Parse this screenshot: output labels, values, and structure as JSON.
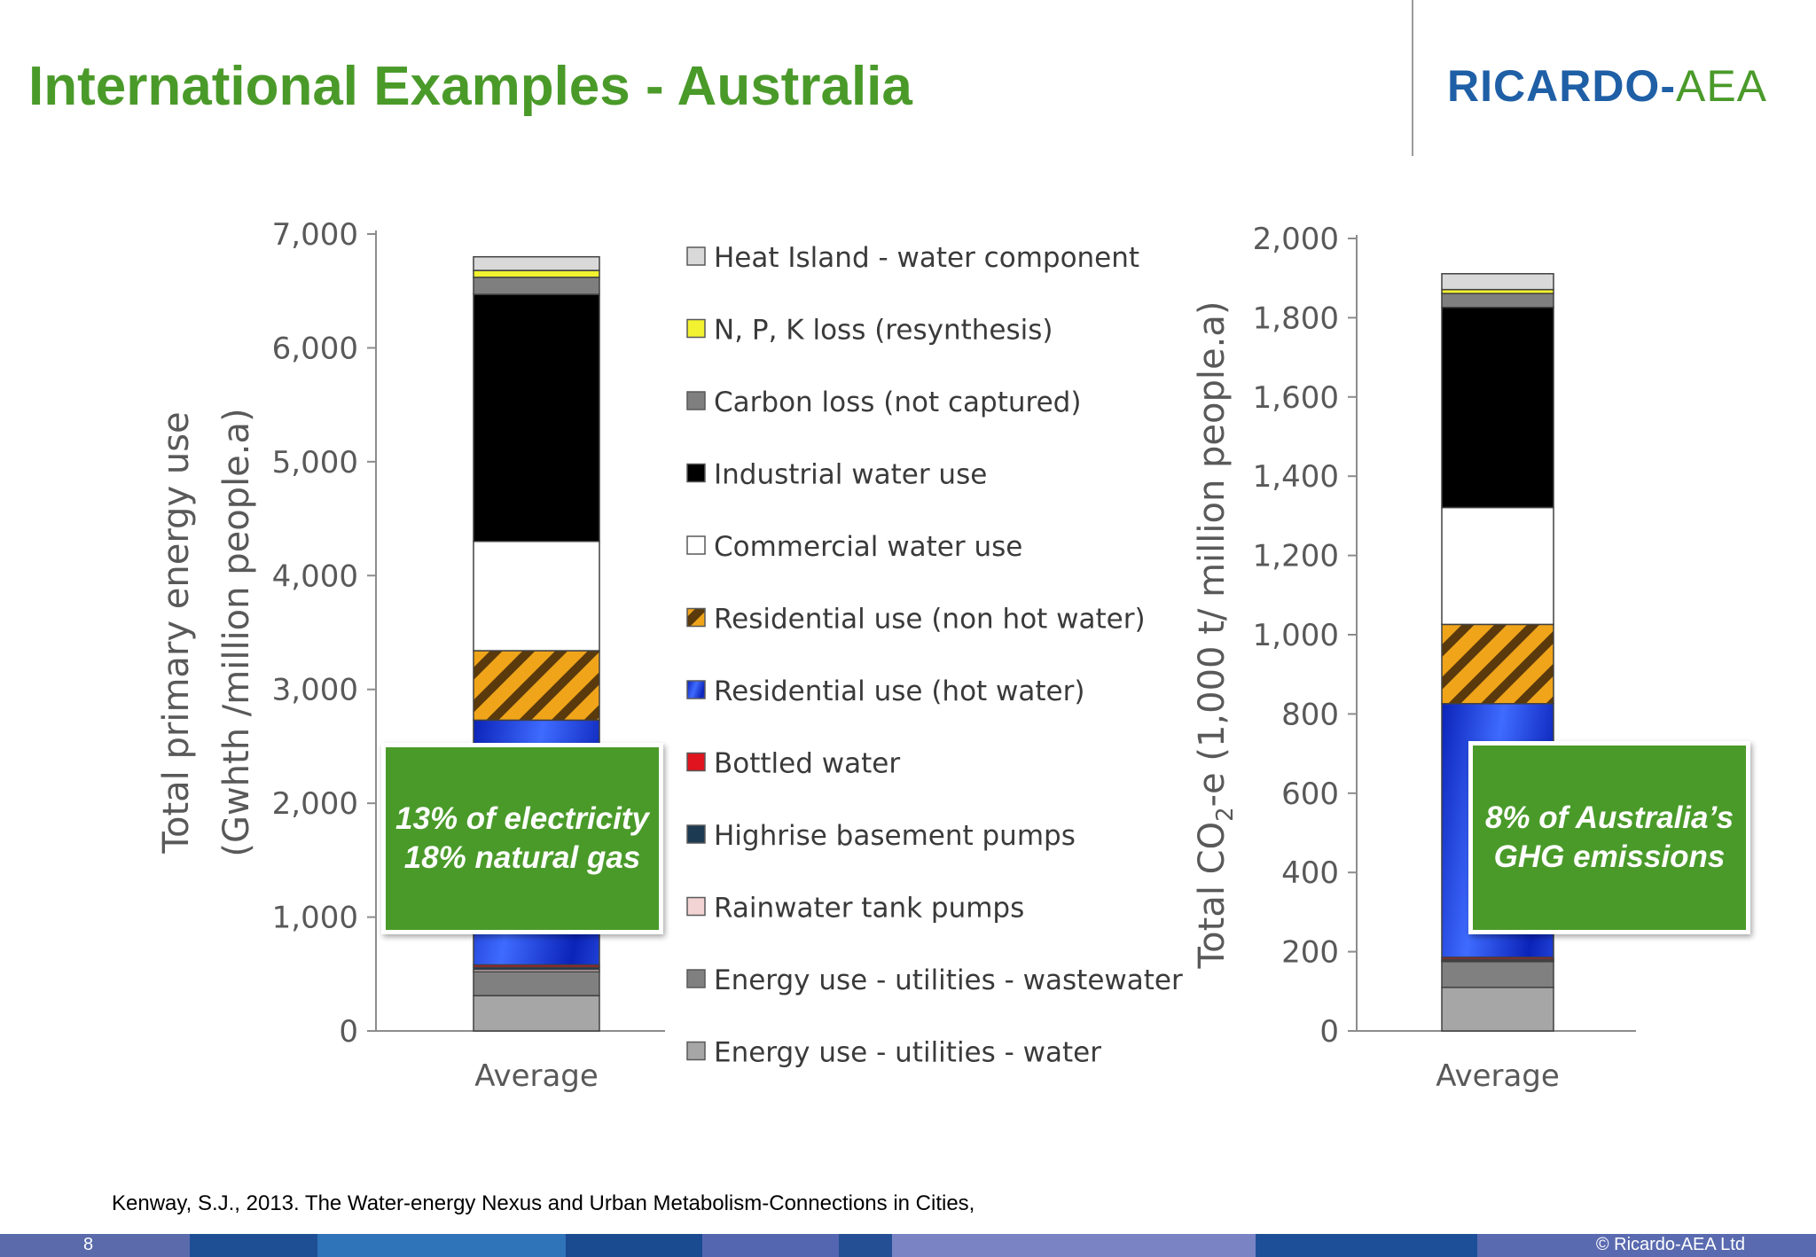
{
  "slide": {
    "title": "International Examples - Australia",
    "logo": {
      "part1": "RICARDO",
      "separator": "-",
      "part2": "AEA"
    },
    "citation": "Kenway, S.J., 2013. The Water-energy Nexus and Urban Metabolism-Connections in Cities,",
    "page_number": "8",
    "copyright": "© Ricardo-AEA Ltd",
    "callouts": {
      "left": {
        "line1": "13% of electricity",
        "line2": "18% natural gas"
      },
      "right": {
        "line1": "8% of Australia’s",
        "line2": "GHG emissions"
      }
    },
    "colors": {
      "title": "#4a9a2a",
      "logo_blue": "#1f5fa6",
      "callout_bg": "#4a9a2a"
    }
  },
  "legend_items": [
    {
      "label": "Heat Island - water component",
      "color": "#d9d9d9"
    },
    {
      "label": "N, P, K loss (resynthesis)",
      "color": "#f2f230"
    },
    {
      "label": "Carbon loss (not captured)",
      "color": "#7f7f7f"
    },
    {
      "label": "Industrial water use",
      "color": "#000000"
    },
    {
      "label": "Commercial water use",
      "color": "#ffffff"
    },
    {
      "label": "Residential use (non hot water)",
      "color": "#e39a16",
      "pattern": "orange-stripes"
    },
    {
      "label": "Residential use (hot water)",
      "color": "#1a3fd9",
      "pattern": "blue-gradient"
    },
    {
      "label": "Bottled water",
      "color": "#e0141e"
    },
    {
      "label": "Highrise basement pumps",
      "color": "#1c3a52"
    },
    {
      "label": "Rainwater tank pumps",
      "color": "#f2d4d4"
    },
    {
      "label": "Energy use - utilities - wastewater",
      "color": "#808080"
    },
    {
      "label": "Energy use - utilities - water",
      "color": "#a6a6a6"
    }
  ],
  "chart_data": [
    {
      "type": "bar",
      "stacked": true,
      "categories": [
        "Average"
      ],
      "ylabel": [
        "Total primary energy use",
        "(Gwhth /million people.a)"
      ],
      "ylim": [
        0,
        7000
      ],
      "yticks": [
        0,
        1000,
        2000,
        3000,
        4000,
        5000,
        6000,
        7000
      ],
      "ytick_labels": [
        "0",
        "1,000",
        "2,000",
        "3,000",
        "4,000",
        "5,000",
        "6,000",
        "7,000"
      ],
      "series": [
        {
          "name": "Energy use - utilities - water",
          "values": [
            310
          ]
        },
        {
          "name": "Energy use - utilities - wastewater",
          "values": [
            210
          ]
        },
        {
          "name": "Rainwater tank pumps",
          "values": [
            20
          ]
        },
        {
          "name": "Highrise basement pumps",
          "values": [
            20
          ]
        },
        {
          "name": "Bottled water",
          "values": [
            20
          ]
        },
        {
          "name": "Residential use (hot water)",
          "values": [
            2150
          ]
        },
        {
          "name": "Residential use (non hot water)",
          "values": [
            610
          ]
        },
        {
          "name": "Commercial water use",
          "values": [
            960
          ]
        },
        {
          "name": "Industrial water use",
          "values": [
            2170
          ]
        },
        {
          "name": "Carbon loss (not captured)",
          "values": [
            150
          ]
        },
        {
          "name": "N, P, K loss (resynthesis)",
          "values": [
            60
          ]
        },
        {
          "name": "Heat Island - water component",
          "values": [
            120
          ]
        }
      ]
    },
    {
      "type": "bar",
      "stacked": true,
      "categories": [
        "Average"
      ],
      "ylabel": [
        "Total CO",
        "2",
        "-e (1,000 t/ million people.a)"
      ],
      "ylim": [
        0,
        2000
      ],
      "yticks": [
        0,
        200,
        400,
        600,
        800,
        1000,
        1200,
        1400,
        1600,
        1800,
        2000
      ],
      "ytick_labels": [
        "0",
        "200",
        "400",
        "600",
        "800",
        "1,000",
        "1,200",
        "1,400",
        "1,600",
        "1,800",
        "2,000"
      ],
      "series": [
        {
          "name": "Energy use - utilities - water",
          "values": [
            110
          ]
        },
        {
          "name": "Energy use - utilities - wastewater",
          "values": [
            65
          ]
        },
        {
          "name": "Rainwater tank pumps",
          "values": [
            3
          ]
        },
        {
          "name": "Highrise basement pumps",
          "values": [
            3
          ]
        },
        {
          "name": "Bottled water",
          "values": [
            5
          ]
        },
        {
          "name": "Residential use (hot water)",
          "values": [
            640
          ]
        },
        {
          "name": "Residential use (non hot water)",
          "values": [
            200
          ]
        },
        {
          "name": "Commercial water use",
          "values": [
            295
          ]
        },
        {
          "name": "Industrial water use",
          "values": [
            505
          ]
        },
        {
          "name": "Carbon loss (not captured)",
          "values": [
            35
          ]
        },
        {
          "name": "N, P, K loss (resynthesis)",
          "values": [
            10
          ]
        },
        {
          "name": "Heat Island - water component",
          "values": [
            40
          ]
        }
      ]
    }
  ]
}
